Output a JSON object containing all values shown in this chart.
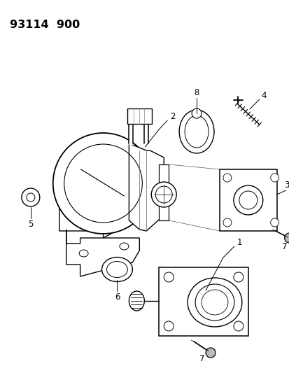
{
  "title": "93114  900",
  "bg_color": "#ffffff",
  "line_color": "#000000",
  "figsize": [
    4.14,
    5.33
  ],
  "dpi": 100
}
